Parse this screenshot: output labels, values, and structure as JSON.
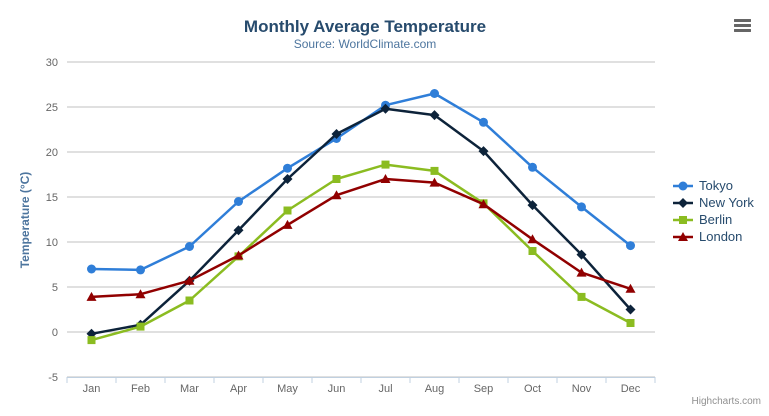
{
  "chart_data": {
    "type": "line",
    "title": "Monthly Average Temperature",
    "subtitle": "Source: WorldClimate.com",
    "y_axis_title": "Temperature (°C)",
    "categories": [
      "Jan",
      "Feb",
      "Mar",
      "Apr",
      "May",
      "Jun",
      "Jul",
      "Aug",
      "Sep",
      "Oct",
      "Nov",
      "Dec"
    ],
    "y_ticks": [
      30,
      25,
      20,
      15,
      10,
      5,
      0,
      -5
    ],
    "ylim": [
      -5,
      30
    ],
    "grid": true,
    "legend_position": "right",
    "series": [
      {
        "name": "Tokyo",
        "color": "#2f7ed8",
        "marker": "circle",
        "values": [
          7.0,
          6.9,
          9.5,
          14.5,
          18.2,
          21.5,
          25.2,
          26.5,
          23.3,
          18.3,
          13.9,
          9.6
        ]
      },
      {
        "name": "New York",
        "color": "#0d233a",
        "marker": "diamond",
        "values": [
          -0.2,
          0.8,
          5.7,
          11.3,
          17.0,
          22.0,
          24.8,
          24.1,
          20.1,
          14.1,
          8.6,
          2.5
        ]
      },
      {
        "name": "Berlin",
        "color": "#8bbc21",
        "marker": "square",
        "values": [
          -0.9,
          0.6,
          3.5,
          8.4,
          13.5,
          17.0,
          18.6,
          17.9,
          14.3,
          9.0,
          3.9,
          1.0
        ]
      },
      {
        "name": "London",
        "color": "#910000",
        "marker": "triangle",
        "values": [
          3.9,
          4.2,
          5.7,
          8.5,
          11.9,
          15.2,
          17.0,
          16.6,
          14.2,
          10.3,
          6.6,
          4.8
        ]
      }
    ],
    "credits": "Highcharts.com",
    "colors": {
      "title": "#274b6d",
      "subtitle": "#4d759e",
      "axis_labels": "#666666",
      "grid_line": "#c0c0c0",
      "axis_line": "#c0d0e0",
      "legend_text": "#274b6d",
      "credits_text": "#909090"
    },
    "icons": {
      "context_button": "hamburger-menu-icon"
    }
  }
}
